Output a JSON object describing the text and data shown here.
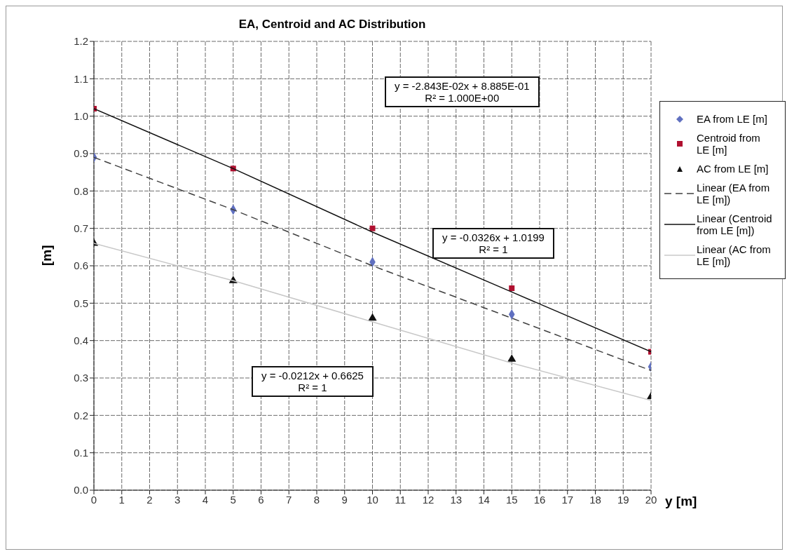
{
  "chart_data": {
    "type": "scatter",
    "title": "EA, Centroid and AC Distribution",
    "xlabel": "y [m]",
    "ylabel": "[m]",
    "xlim": [
      0,
      20
    ],
    "xticks": [
      0,
      1,
      2,
      3,
      4,
      5,
      6,
      7,
      8,
      9,
      10,
      11,
      12,
      13,
      14,
      15,
      16,
      17,
      18,
      19,
      20
    ],
    "ylim": [
      0,
      1.2
    ],
    "yticks": [
      {
        "value": 0,
        "label": "0.0"
      },
      0.1,
      0.2,
      0.3,
      0.4,
      0.5,
      0.6,
      0.7,
      0.8,
      0.9,
      {
        "value": 1,
        "label": "1.0"
      },
      1.1,
      1.2
    ],
    "grid": true,
    "legend": "right",
    "x": [
      0,
      5,
      10,
      15,
      20
    ],
    "series": [
      {
        "name": "EA from LE [m]",
        "color": "#6070c0",
        "marker": "diamond",
        "values": [
          0.89,
          0.75,
          0.61,
          0.47,
          0.33
        ]
      },
      {
        "name": "Centroid from LE [m]",
        "color": "#b01030",
        "marker": "square",
        "values": [
          1.02,
          0.86,
          0.7,
          0.54,
          0.37
        ]
      },
      {
        "name": "AC from LE [m]",
        "color": "#101010",
        "marker": "triangle",
        "values": [
          0.66,
          0.56,
          0.46,
          0.35,
          0.25
        ]
      },
      {
        "name": "Linear (EA from LE [m])",
        "type": "line",
        "color": "#404040",
        "line_style": "dashed",
        "marker": "none",
        "values": [
          0.89,
          0.75,
          0.6,
          0.46,
          0.32
        ]
      },
      {
        "name": "Linear (Centroid from LE [m])",
        "type": "line",
        "color": "#101010",
        "line_style": "solid",
        "marker": "none",
        "values": [
          1.02,
          0.86,
          0.69,
          0.53,
          0.37
        ]
      },
      {
        "name": "Linear (AC from LE [m])",
        "type": "line",
        "color": "#c8c8c8",
        "line_style": "solid",
        "marker": "none",
        "values": [
          0.66,
          0.56,
          0.45,
          0.34,
          0.24
        ]
      }
    ],
    "annotations": [
      "y = -2.843E-02x + 8.885E-01\nR² = 1.000E+00",
      "y = -0.0326x + 1.0199\nR² = 1",
      "y = -0.0212x + 0.6625\nR² = 1"
    ]
  }
}
